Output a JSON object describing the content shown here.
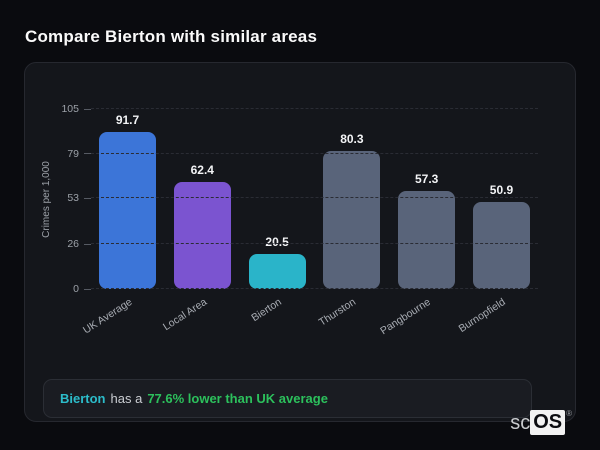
{
  "page": {
    "title": "Compare Bierton with similar areas"
  },
  "note": {
    "area_label": "Bierton",
    "middle_text": "has a",
    "highlight_text": "77.6% lower than UK average"
  },
  "logo": {
    "prefix": "sc",
    "suffix": "OS",
    "registered_mark": "®"
  },
  "colors": {
    "page_bg": "#0a0b0f",
    "card_bg": "#14161b",
    "card_border": "#26282f",
    "note_bg": "#1a1c22",
    "note_border": "#2b2e35",
    "grid_line": "#2a2c34",
    "text_muted": "#9ca1a8",
    "accent_teal": "#2cbcca",
    "accent_green": "#2cc05c"
  },
  "chart_data": {
    "type": "bar",
    "title": "Compare Bierton with similar areas",
    "categories": [
      "UK Average",
      "Local Area",
      "Bierton",
      "Thurston",
      "Pangbourne",
      "Burnopfield"
    ],
    "values": [
      91.7,
      62.4,
      20.5,
      80.3,
      57.3,
      50.9
    ],
    "bar_colors": [
      "#3c75d8",
      "#7b54d0",
      "#2ab4c9",
      "#59647a",
      "#59647a",
      "#59647a"
    ],
    "xlabel": "",
    "ylabel": "Crimes per 1,000",
    "ylim": [
      0,
      105
    ],
    "yticks": [
      0,
      26,
      53,
      79,
      105
    ],
    "grid": "dashed-horizontal",
    "legend": "none"
  }
}
